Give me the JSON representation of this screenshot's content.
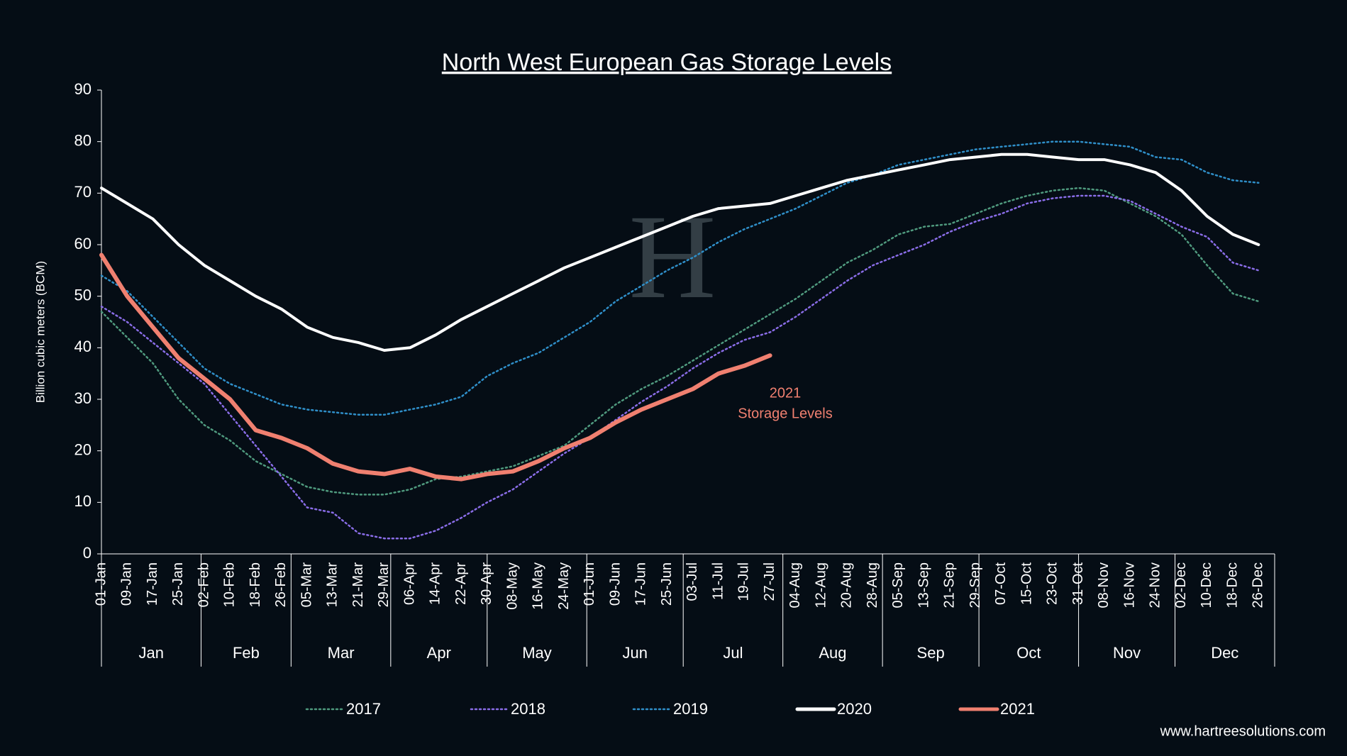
{
  "chart_data": {
    "type": "line",
    "title": "North West European Gas Storage Levels",
    "y_label": "Billion cubic meters (BCM)",
    "categories": [
      "01-Jan",
      "09-Jan",
      "17-Jan",
      "25-Jan",
      "02-Feb",
      "10-Feb",
      "18-Feb",
      "26-Feb",
      "05-Mar",
      "13-Mar",
      "21-Mar",
      "29-Mar",
      "06-Apr",
      "14-Apr",
      "22-Apr",
      "30-Apr",
      "08-May",
      "16-May",
      "24-May",
      "01-Jun",
      "09-Jun",
      "17-Jun",
      "25-Jun",
      "03-Jul",
      "11-Jul",
      "19-Jul",
      "27-Jul",
      "04-Aug",
      "12-Aug",
      "20-Aug",
      "28-Aug",
      "05-Sep",
      "13-Sep",
      "21-Sep",
      "29-Sep",
      "07-Oct",
      "15-Oct",
      "23-Oct",
      "31-Oct",
      "08-Nov",
      "16-Nov",
      "24-Nov",
      "02-Dec",
      "10-Dec",
      "18-Dec",
      "26-Dec"
    ],
    "months": [
      "Jan",
      "Feb",
      "Mar",
      "Apr",
      "May",
      "Jun",
      "Jul",
      "Aug",
      "Sep",
      "Oct",
      "Nov",
      "Dec"
    ],
    "series": [
      {
        "name": "2017",
        "color": "#4f9a7e",
        "style": "dotted",
        "values": [
          47,
          42,
          37,
          30,
          25,
          22,
          18,
          15.5,
          13,
          12,
          11.5,
          11.5,
          12.5,
          14.5,
          15,
          16,
          17,
          19,
          21,
          25,
          29,
          32,
          34.5,
          37.5,
          40.5,
          43.5,
          46.5,
          49.5,
          53,
          56.5,
          59,
          62,
          63.5,
          64,
          66,
          68,
          69.5,
          70.5,
          71,
          70.5,
          68,
          65.5,
          62,
          56,
          50.5,
          49
        ]
      },
      {
        "name": "2018",
        "color": "#8a6de8",
        "style": "dotted",
        "values": [
          48,
          45,
          41,
          37,
          33,
          27,
          21,
          15,
          9,
          8,
          4,
          3,
          3,
          4.5,
          7,
          10,
          12.5,
          16,
          19.5,
          22.5,
          26,
          29.5,
          32.5,
          36,
          39,
          41.5,
          43,
          46,
          49.5,
          53,
          56,
          58,
          60,
          62.5,
          64.5,
          66,
          68,
          69,
          69.5,
          69.5,
          68.5,
          66,
          63.5,
          61.5,
          56.5,
          55
        ]
      },
      {
        "name": "2019",
        "color": "#2f8fc9",
        "style": "dotted",
        "values": [
          54,
          51,
          46,
          41,
          36,
          33,
          31,
          29,
          28,
          27.5,
          27,
          27,
          28,
          29,
          30.5,
          34.5,
          37,
          39,
          42,
          45,
          49,
          52,
          55,
          57.5,
          60.5,
          63,
          65,
          67,
          69.5,
          72,
          73.5,
          75.5,
          76.5,
          77.5,
          78.5,
          79,
          79.5,
          80,
          80,
          79.5,
          79,
          77,
          76.5,
          74,
          72.5,
          72
        ]
      },
      {
        "name": "2020",
        "color": "#ffffff",
        "style": "solid",
        "values": [
          71,
          68,
          65,
          60,
          56,
          53,
          50,
          47.5,
          44,
          42,
          41,
          39.5,
          40,
          42.5,
          45.5,
          48,
          50.5,
          53,
          55.5,
          57.5,
          59.5,
          61.5,
          63.5,
          65.5,
          67,
          67.5,
          68,
          69.5,
          71,
          72.5,
          73.5,
          74.5,
          75.5,
          76.5,
          77,
          77.5,
          77.5,
          77,
          76.5,
          76.5,
          75.5,
          74,
          70.5,
          65.5,
          62,
          60
        ]
      },
      {
        "name": "2021",
        "color": "#f08070",
        "style": "solid",
        "values": [
          58,
          50,
          44,
          38,
          34,
          30,
          24,
          22.5,
          20.5,
          17.5,
          16,
          15.5,
          16.5,
          15,
          14.5,
          15.5,
          16,
          18,
          20.5,
          22.5,
          25.5,
          28,
          30,
          32,
          35,
          36.5,
          38.5,
          null,
          null,
          null,
          null,
          null,
          null,
          null,
          null,
          null,
          null,
          null,
          null,
          null,
          null,
          null,
          null,
          null,
          null,
          null
        ]
      }
    ],
    "annotation": [
      "2021",
      "Storage Levels"
    ],
    "ylim": [
      0,
      90
    ],
    "yticks": [
      0,
      10,
      20,
      30,
      40,
      50,
      60,
      70,
      80,
      90
    ],
    "source": "www.hartreesolutions.com"
  }
}
